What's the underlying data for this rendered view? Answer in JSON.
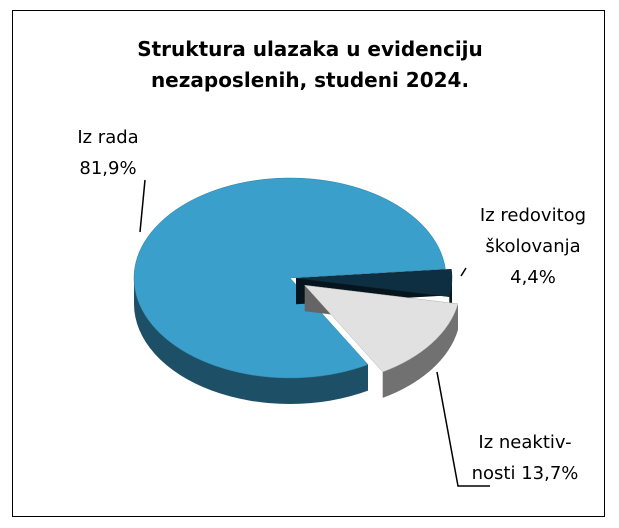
{
  "chart_data": {
    "type": "pie",
    "title": "Struktura ulazaka u evidenciju nezaposlenih, studeni 2024.",
    "categories": [
      "Iz rada",
      "Iz redovitog školovanja",
      "Iz neaktiv-nosti"
    ],
    "values": [
      81.9,
      4.4,
      13.7
    ],
    "value_labels": [
      "81,9%",
      "4,4%",
      "13,7%"
    ],
    "colors": [
      "#3a9fcb",
      "#0e2f41",
      "#e1e1e1"
    ]
  }
}
